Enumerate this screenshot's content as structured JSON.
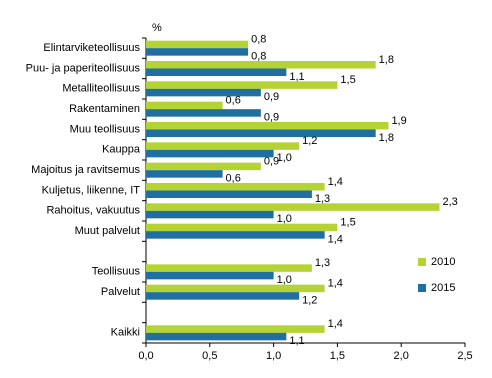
{
  "chart_data": {
    "type": "bar",
    "orientation": "horizontal",
    "xlabel": "%",
    "categories": [
      "Elintarviketeollisuus",
      "Puu- ja paperiteollisuus",
      "Metalliteollisuus",
      "Rakentaminen",
      "Muu teollisuus",
      "Kauppa",
      "Majoitus ja ravitsemus",
      "Kuljetus, liikenne, IT",
      "Rahoitus, vakuutus",
      "Muut palvelut",
      null,
      "Teollisuus",
      "Palvelut",
      null,
      "Kaikki"
    ],
    "series": [
      {
        "name": "2010",
        "color": "#b5d334",
        "values": [
          0.8,
          1.8,
          1.5,
          0.6,
          1.9,
          1.2,
          0.9,
          1.4,
          2.3,
          1.5,
          null,
          1.3,
          1.4,
          null,
          1.4
        ],
        "value_labels": [
          "0,8",
          "1,8",
          "1,5",
          "0,6",
          "1,9",
          "1,2",
          "0,9",
          "1,4",
          "2,3",
          "1,5",
          null,
          "1,3",
          "1,4",
          null,
          "1,4"
        ]
      },
      {
        "name": "2015",
        "color": "#1f6fa0",
        "values": [
          0.8,
          1.1,
          0.9,
          0.9,
          1.8,
          1.0,
          0.6,
          1.3,
          1.0,
          1.4,
          null,
          1.0,
          1.2,
          null,
          1.1
        ],
        "value_labels": [
          "0,8",
          "1,1",
          "0,9",
          "0,9",
          "1,8",
          "1,0",
          "0,6",
          "1,3",
          "1,0",
          "1,4",
          null,
          "1,0",
          "1,2",
          null,
          "1,1"
        ]
      }
    ],
    "xlim": [
      0,
      2.5
    ],
    "xticks": [
      {
        "value": 0,
        "label": "0,0"
      },
      {
        "value": 0.5,
        "label": "0,5"
      },
      {
        "value": 1,
        "label": "1,0"
      },
      {
        "value": 1.5,
        "label": "1,5"
      },
      {
        "value": 2,
        "label": "2,0"
      },
      {
        "value": 2.5,
        "label": "2,5"
      }
    ],
    "legend_position": "right"
  }
}
